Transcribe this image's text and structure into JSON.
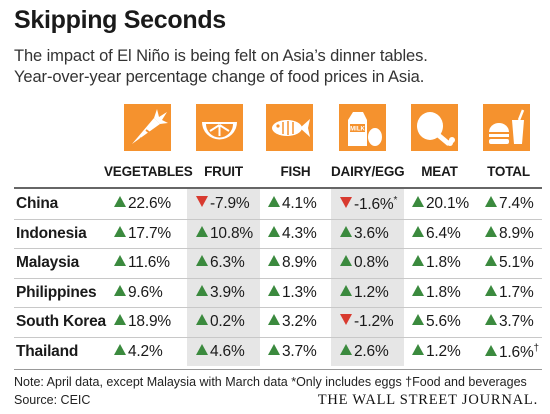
{
  "title": "Skipping Seconds",
  "subtitle_line1": "The impact of El Niño is being felt on Asia’s dinner tables.",
  "subtitle_line2": "Year-over-year percentage change of food prices in Asia.",
  "colors": {
    "icon_bg": "#f5922e",
    "up": "#3b8a3e",
    "down": "#d83a2f",
    "shade": "#e6e6e6"
  },
  "columns": [
    {
      "label": "VEGETABLES",
      "icon": "carrot-icon"
    },
    {
      "label": "FRUIT",
      "icon": "orange-slice-icon"
    },
    {
      "label": "FISH",
      "icon": "fish-icon"
    },
    {
      "label": "DAIRY/EGG",
      "icon": "milk-egg-icon"
    },
    {
      "label": "MEAT",
      "icon": "meat-icon"
    },
    {
      "label": "TOTAL",
      "icon": "burger-drink-icon"
    }
  ],
  "rows": [
    {
      "country": "China",
      "values": [
        {
          "text": "22.6%",
          "dir": "up"
        },
        {
          "text": "-7.9%",
          "dir": "down"
        },
        {
          "text": "4.1%",
          "dir": "up"
        },
        {
          "text": "-1.6%",
          "dir": "down",
          "mark": "*"
        },
        {
          "text": "20.1%",
          "dir": "up"
        },
        {
          "text": "7.4%",
          "dir": "up"
        }
      ]
    },
    {
      "country": "Indonesia",
      "values": [
        {
          "text": "17.7%",
          "dir": "up"
        },
        {
          "text": "10.8%",
          "dir": "up"
        },
        {
          "text": "4.3%",
          "dir": "up"
        },
        {
          "text": "3.6%",
          "dir": "up"
        },
        {
          "text": "6.4%",
          "dir": "up"
        },
        {
          "text": "8.9%",
          "dir": "up"
        }
      ]
    },
    {
      "country": "Malaysia",
      "values": [
        {
          "text": "11.6%",
          "dir": "up"
        },
        {
          "text": "6.3%",
          "dir": "up"
        },
        {
          "text": "8.9%",
          "dir": "up"
        },
        {
          "text": "0.8%",
          "dir": "up"
        },
        {
          "text": "1.8%",
          "dir": "up"
        },
        {
          "text": "5.1%",
          "dir": "up"
        }
      ]
    },
    {
      "country": "Philippines",
      "values": [
        {
          "text": "9.6%",
          "dir": "up"
        },
        {
          "text": "3.9%",
          "dir": "up"
        },
        {
          "text": "1.3%",
          "dir": "up"
        },
        {
          "text": "1.2%",
          "dir": "up"
        },
        {
          "text": "1.8%",
          "dir": "up"
        },
        {
          "text": "1.7%",
          "dir": "up"
        }
      ]
    },
    {
      "country": "South Korea",
      "values": [
        {
          "text": "18.9%",
          "dir": "up"
        },
        {
          "text": "0.2%",
          "dir": "up"
        },
        {
          "text": "3.2%",
          "dir": "up"
        },
        {
          "text": "-1.2%",
          "dir": "down"
        },
        {
          "text": "5.6%",
          "dir": "up"
        },
        {
          "text": "3.7%",
          "dir": "up"
        }
      ]
    },
    {
      "country": "Thailand",
      "values": [
        {
          "text": "4.2%",
          "dir": "up"
        },
        {
          "text": "4.6%",
          "dir": "up"
        },
        {
          "text": "3.7%",
          "dir": "up"
        },
        {
          "text": "2.6%",
          "dir": "up"
        },
        {
          "text": "1.2%",
          "dir": "up"
        },
        {
          "text": "1.6%",
          "dir": "up",
          "mark": "†"
        }
      ]
    }
  ],
  "note": "Note: April data, except Malaysia with March data   *Only includes eggs   †Food and beverages",
  "source": "Source: CEIC",
  "publisher": "THE WALL STREET JOURNAL."
}
